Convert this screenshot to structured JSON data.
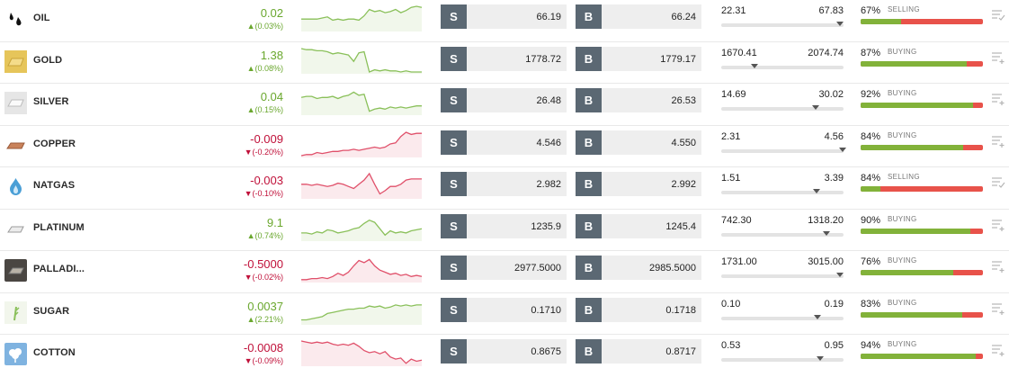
{
  "rows": [
    {
      "name": "OIL",
      "icon": "oil-drops-icon",
      "change": "0.02",
      "pct": "▲(0.03%)",
      "dir": "up",
      "spark": [
        12,
        12,
        12,
        12,
        11,
        10,
        13,
        12,
        13,
        12,
        12,
        13,
        9,
        3,
        5,
        4,
        6,
        5,
        3,
        6,
        4,
        1,
        0,
        1
      ],
      "sell": "66.19",
      "buy": "66.24",
      "low": "22.31",
      "high": "67.83",
      "pos": 0.97,
      "sentiment": "67%",
      "side": "SELLING",
      "fill": 0.33,
      "menu_icon": "check-list-icon"
    },
    {
      "name": "GOLD",
      "icon": "gold-bar-icon",
      "change": "1.38",
      "pct": "▲(0.08%)",
      "dir": "up",
      "spark": [
        0,
        1,
        1,
        2,
        2,
        3,
        5,
        4,
        5,
        6,
        12,
        4,
        3,
        22,
        20,
        21,
        20,
        21,
        21,
        22,
        21,
        22,
        22,
        22
      ],
      "sell": "1778.72",
      "buy": "1779.17",
      "low": "1670.41",
      "high": "2074.74",
      "pos": 0.27,
      "sentiment": "87%",
      "side": "BUYING",
      "fill": 0.87,
      "menu_icon": "list-add-icon"
    },
    {
      "name": "SILVER",
      "icon": "silver-bar-icon",
      "change": "0.04",
      "pct": "▲(0.15%)",
      "dir": "up",
      "spark": [
        7,
        6,
        6,
        8,
        7,
        7,
        6,
        8,
        6,
        5,
        2,
        5,
        4,
        20,
        18,
        17,
        18,
        16,
        17,
        16,
        17,
        16,
        15,
        15
      ],
      "sell": "26.48",
      "buy": "26.53",
      "low": "14.69",
      "high": "30.02",
      "pos": 0.77,
      "sentiment": "92%",
      "side": "BUYING",
      "fill": 0.92,
      "menu_icon": "list-add-icon"
    },
    {
      "name": "COPPER",
      "icon": "copper-bar-icon",
      "change": "-0.009",
      "pct": "▼(-0.20%)",
      "dir": "down",
      "spark": [
        22,
        21,
        21,
        19,
        20,
        19,
        18,
        18,
        17,
        17,
        16,
        17,
        16,
        15,
        14,
        15,
        14,
        11,
        10,
        4,
        0,
        2,
        1,
        1
      ],
      "sell": "4.546",
      "buy": "4.550",
      "low": "2.31",
      "high": "4.56",
      "pos": 0.99,
      "sentiment": "84%",
      "side": "BUYING",
      "fill": 0.84,
      "menu_icon": "list-add-icon"
    },
    {
      "name": "NATGAS",
      "icon": "flame-drop-icon",
      "change": "-0.003",
      "pct": "▼(-0.10%)",
      "dir": "down",
      "spark": [
        10,
        10,
        11,
        10,
        11,
        12,
        11,
        9,
        10,
        12,
        14,
        10,
        6,
        0,
        10,
        19,
        16,
        12,
        12,
        10,
        6,
        5,
        5,
        5
      ],
      "sell": "2.982",
      "buy": "2.992",
      "low": "1.51",
      "high": "3.39",
      "pos": 0.78,
      "sentiment": "84%",
      "side": "SELLING",
      "fill": 0.16,
      "menu_icon": "check-list-icon"
    },
    {
      "name": "PLATINUM",
      "icon": "platinum-bar-icon",
      "change": "9.1",
      "pct": "▲(0.74%)",
      "dir": "up",
      "spark": [
        16,
        16,
        17,
        15,
        16,
        13,
        14,
        16,
        15,
        14,
        12,
        11,
        7,
        4,
        6,
        12,
        18,
        14,
        16,
        15,
        16,
        14,
        13,
        12
      ],
      "sell": "1235.9",
      "buy": "1245.4",
      "low": "742.30",
      "high": "1318.20",
      "pos": 0.86,
      "sentiment": "90%",
      "side": "BUYING",
      "fill": 0.9,
      "menu_icon": "list-add-icon"
    },
    {
      "name": "PALLADI...",
      "icon": "palladium-bar-icon",
      "change": "-0.5000",
      "pct": "▼(-0.02%)",
      "dir": "down",
      "spark": [
        21,
        21,
        20,
        20,
        19,
        20,
        18,
        15,
        17,
        14,
        8,
        3,
        5,
        2,
        8,
        12,
        14,
        16,
        15,
        17,
        16,
        18,
        17,
        18
      ],
      "sell": "2977.5000",
      "buy": "2985.5000",
      "low": "1731.00",
      "high": "3015.00",
      "pos": 0.97,
      "sentiment": "76%",
      "side": "BUYING",
      "fill": 0.76,
      "menu_icon": "list-add-icon"
    },
    {
      "name": "SUGAR",
      "icon": "sugarcane-icon",
      "change": "0.0037",
      "pct": "▲(2.21%)",
      "dir": "up",
      "spark": [
        19,
        19,
        18,
        17,
        16,
        13,
        12,
        11,
        10,
        9,
        9,
        8,
        8,
        6,
        7,
        6,
        8,
        7,
        5,
        6,
        5,
        6,
        5,
        5
      ],
      "sell": "0.1710",
      "buy": "0.1718",
      "low": "0.10",
      "high": "0.19",
      "pos": 0.79,
      "sentiment": "83%",
      "side": "BUYING",
      "fill": 0.83,
      "menu_icon": "list-add-icon"
    },
    {
      "name": "COTTON",
      "icon": "cotton-icon",
      "change": "-0.0008",
      "pct": "▼(-0.09%)",
      "dir": "down",
      "spark": [
        0,
        1,
        2,
        1,
        2,
        1,
        3,
        4,
        3,
        4,
        2,
        5,
        9,
        11,
        10,
        12,
        10,
        15,
        17,
        16,
        21,
        17,
        19,
        18
      ],
      "sell": "0.8675",
      "buy": "0.8717",
      "low": "0.53",
      "high": "0.95",
      "pos": 0.81,
      "sentiment": "94%",
      "side": "BUYING",
      "fill": 0.94,
      "menu_icon": "list-add-icon"
    }
  ],
  "labels": {
    "sell_tag": "S",
    "buy_tag": "B"
  },
  "colors": {
    "up": "#6aa72e",
    "down": "#c0113a",
    "spark_up": "#8ac05a",
    "spark_down": "#e0506a",
    "buy_bar": "#82b23a",
    "sell_bar": "#e8524a"
  }
}
